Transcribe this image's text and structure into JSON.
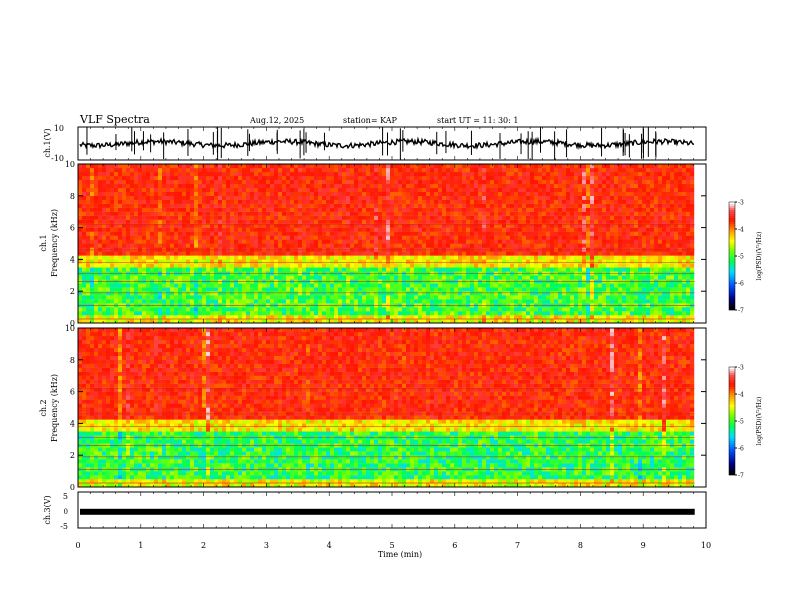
{
  "header": {
    "title": "VLF Spectra",
    "date": "Aug.12, 2025",
    "station": "station= KAP",
    "start": "start  UT =   11: 30: 1"
  },
  "chart_data": [
    {
      "type": "line",
      "name": "ch1-waveform",
      "ylabel": "ch.1(V)",
      "ylim": [
        -10,
        10
      ],
      "yticks": [
        10,
        -10
      ],
      "x_range_min": [
        0,
        9.82
      ],
      "description_free": true
    },
    {
      "type": "heatmap",
      "name": "ch1-spectrogram",
      "ylabel_line1": "ch.1",
      "ylabel_line2": "Frequency (kHz)",
      "ylim": [
        0,
        10
      ],
      "yticks": [
        0,
        2,
        4,
        6,
        8,
        10
      ],
      "colorbar": {
        "label": "log(PSD)(V²/Hz)",
        "range": [
          -7,
          -3
        ],
        "ticks": [
          -3,
          -4,
          -5,
          -6,
          -7
        ]
      }
    },
    {
      "type": "heatmap",
      "name": "ch2-spectrogram",
      "ylabel_line1": "ch.2",
      "ylabel_line2": "Frequency (kHz)",
      "ylim": [
        0,
        10
      ],
      "yticks": [
        0,
        2,
        4,
        6,
        8,
        10
      ],
      "colorbar": {
        "label": "log(PSD)(V²/Hz)",
        "range": [
          -7,
          -3
        ],
        "ticks": [
          -3,
          -4,
          -5,
          -6,
          -7
        ]
      }
    },
    {
      "type": "line",
      "name": "ch3-waveform",
      "ylabel": "ch.3(V)",
      "ylim": [
        -5,
        5
      ],
      "yticks": [
        5,
        0,
        -5
      ],
      "level": -0.5
    }
  ],
  "xaxis": {
    "label": "Time (min)",
    "range": [
      0,
      10
    ],
    "ticks": [
      "0",
      "1",
      "2",
      "3",
      "4",
      "5",
      "6",
      "7",
      "8",
      "9",
      "10"
    ]
  }
}
